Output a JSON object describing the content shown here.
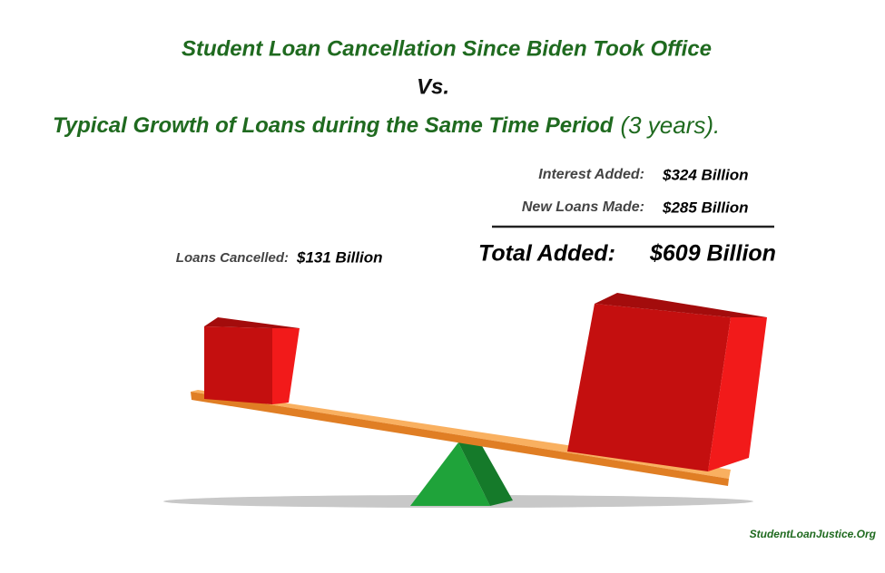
{
  "title": {
    "line1": "Student Loan Cancellation Since Biden Took Office",
    "vs": "Vs.",
    "line2": "Typical Growth of Loans during the Same Time Period",
    "line2_suffix": "(3 years)."
  },
  "left": {
    "label": "Loans Cancelled:",
    "value": "$131 Billion"
  },
  "right": {
    "items": [
      {
        "label": "Interest Added:",
        "value": "$324 Billion"
      },
      {
        "label": "New Loans Made:",
        "value": "$285 Billion"
      }
    ],
    "total": {
      "label": "Total Added:",
      "value": "$609 Billion"
    }
  },
  "footer": "StudentLoanJustice.Org"
}
